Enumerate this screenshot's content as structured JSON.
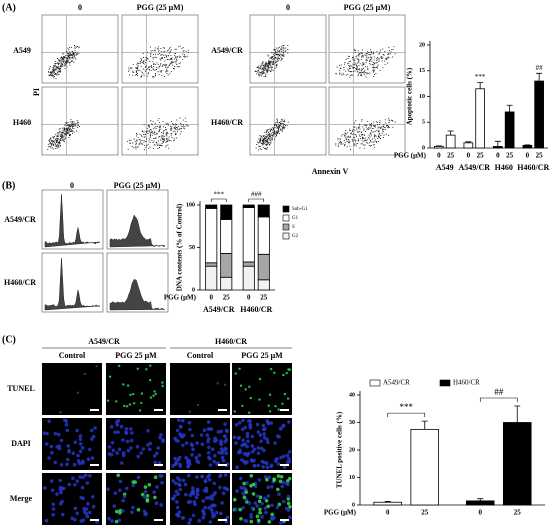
{
  "labels": {
    "a": "(A)",
    "b": "(B)",
    "c": "(C)"
  },
  "flow": {
    "headers": [
      "0",
      "PGG (25 μM)"
    ],
    "rows_left": [
      "A549",
      "H460"
    ],
    "rows_right": [
      "A549/CR",
      "H460/CR"
    ],
    "y_axis": "PI",
    "x_axis": "Annexin V"
  },
  "cell_cycle": {
    "headers": [
      "0",
      "PGG (25 μM)"
    ],
    "rows": [
      "A549/CR",
      "H460/CR"
    ]
  },
  "micrographs": {
    "groups": [
      "A549/CR",
      "H460/CR"
    ],
    "columns": [
      "Control",
      "PGG 25 μM",
      "Control",
      "PGG 25 μM"
    ],
    "rows": [
      "TUNEL",
      "DAPI",
      "Merge"
    ]
  },
  "chart_data": [
    {
      "type": "bar",
      "ylabel": "Apoptotic cells (%)",
      "xlabel": "PGG (μM)",
      "categories": [
        "0",
        "25",
        "0",
        "25",
        "0",
        "25",
        "0",
        "25"
      ],
      "groups": [
        "A549",
        "A549/CR",
        "H460",
        "H460/CR"
      ],
      "values": [
        0.3,
        2.5,
        1,
        11.5,
        0.3,
        7,
        0.5,
        13
      ],
      "errors": [
        0.1,
        0.8,
        0.2,
        1.2,
        1,
        1.3,
        0.1,
        1.5
      ],
      "colors": [
        "#ffffff",
        "#ffffff",
        "#ffffff",
        "#ffffff",
        "#000000",
        "#000000",
        "#000000",
        "#000000"
      ],
      "value_annotations": [
        null,
        null,
        null,
        "***",
        null,
        null,
        null,
        "##"
      ],
      "ylim": [
        0,
        20
      ],
      "yticks": [
        0,
        5,
        10,
        15,
        20
      ]
    },
    {
      "type": "stacked_bar",
      "ylabel": "DNA contents (% of Control)",
      "xlabel": "PGG (μM)",
      "categories": [
        "0",
        "25",
        "0",
        "25"
      ],
      "groups": [
        "A549/CR",
        "H460/CR"
      ],
      "group_annotations": [
        "***",
        "###"
      ],
      "series": [
        {
          "name": "Sub-G1",
          "color": "#000000",
          "values": [
            4,
            17,
            3,
            14
          ]
        },
        {
          "name": "G1",
          "color": "#ffffff",
          "values": [
            64,
            40,
            64,
            44
          ]
        },
        {
          "name": "S",
          "color": "#a6a6a6",
          "values": [
            4,
            28,
            5,
            30
          ]
        },
        {
          "name": "G2",
          "color": "#f2f2f2",
          "values": [
            28,
            15,
            28,
            12
          ]
        }
      ],
      "ylim": [
        0,
        100
      ],
      "yticks": [
        0,
        50,
        100
      ]
    },
    {
      "type": "grouped_bar",
      "ylabel": "TUNEL positive cells (%)",
      "xlabel": "PGG (μM)",
      "categories": [
        "0",
        "25",
        "0",
        "25"
      ],
      "series": [
        {
          "name": "A549/CR",
          "color": "#ffffff",
          "values": [
            1,
            27.5,
            null,
            null
          ],
          "errors": [
            0.3,
            3,
            null,
            null
          ],
          "value_annotations": [
            null,
            "***",
            null,
            null
          ]
        },
        {
          "name": "H460/CR",
          "color": "#000000",
          "values": [
            null,
            null,
            1.5,
            30
          ],
          "errors": [
            null,
            null,
            0.8,
            6
          ],
          "value_annotations": [
            null,
            null,
            null,
            "##"
          ]
        }
      ],
      "ylim": [
        0,
        40
      ],
      "yticks": [
        0,
        10,
        20,
        30,
        40
      ]
    }
  ]
}
